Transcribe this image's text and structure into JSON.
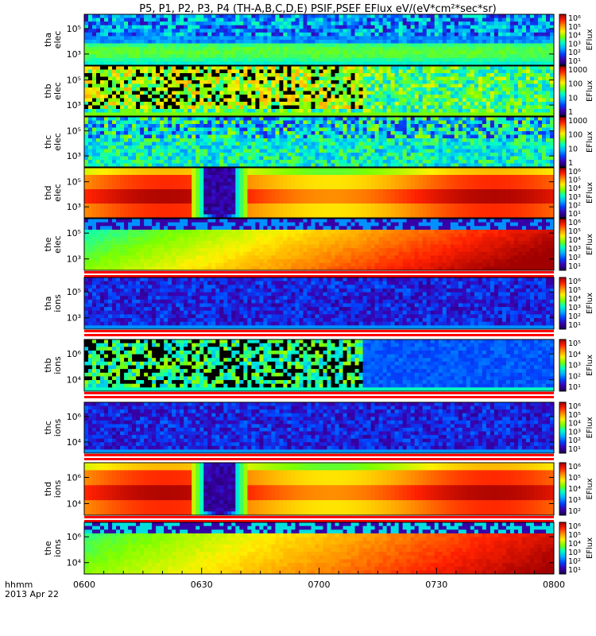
{
  "title": "P5, P1, P2, P3, P4 (TH-A,B,C,D,E) PSIF,PSEF EFlux eV/(eV*cm²*sec*sr)",
  "xaxis": {
    "ticks": [
      "0600",
      "0630",
      "0700",
      "0730",
      "0800"
    ],
    "label_line1": "hhmm",
    "label_line2": "2013 Apr 22"
  },
  "colors": {
    "band_red": "#ff0000",
    "frame": "#000000",
    "colormap": [
      "#1a0050",
      "#3a00b0",
      "#0044ff",
      "#00b0ff",
      "#00ffc8",
      "#7cff00",
      "#fff000",
      "#ff9000",
      "#ff2000",
      "#a00000"
    ]
  },
  "chart_data": [
    {
      "type": "heatmap",
      "name": "tha elec",
      "label1": "tha",
      "label2": "elec",
      "yticks": [
        "10⁵",
        "10³"
      ],
      "cbar_ticks": [
        "10⁶",
        "10⁵",
        "10⁴",
        "10³",
        "10²",
        "10¹"
      ],
      "cbar_label": "EFlux",
      "red_band": false
    },
    {
      "type": "heatmap",
      "name": "thb elec",
      "label1": "thb",
      "label2": "elec",
      "yticks": [
        "10⁵",
        "10³"
      ],
      "cbar_ticks": [
        "1000",
        "100",
        "10",
        "1"
      ],
      "cbar_label": "EFlux",
      "red_band": false
    },
    {
      "type": "heatmap",
      "name": "thc elec",
      "label1": "thc",
      "label2": "elec",
      "yticks": [
        "10⁵",
        "10³"
      ],
      "cbar_ticks": [
        "1000",
        "100",
        "10",
        "1"
      ],
      "cbar_label": "EFlux",
      "red_band": false
    },
    {
      "type": "heatmap",
      "name": "thd elec",
      "label1": "thd",
      "label2": "elec",
      "yticks": [
        "10⁵",
        "10³"
      ],
      "cbar_ticks": [
        "10⁶",
        "10⁵",
        "10⁴",
        "10³",
        "10²",
        "10¹"
      ],
      "cbar_label": "EFlux",
      "red_band": false
    },
    {
      "type": "heatmap",
      "name": "the elec",
      "label1": "the",
      "label2": "elec",
      "yticks": [
        "10⁵",
        "10³"
      ],
      "cbar_ticks": [
        "10⁶",
        "10⁵",
        "10⁴",
        "10³",
        "10²",
        "10¹"
      ],
      "cbar_label": "EFlux",
      "red_band": true
    },
    {
      "type": "heatmap",
      "name": "tha ions",
      "label1": "tha",
      "label2": "ions",
      "yticks": [
        "10⁵",
        "10³"
      ],
      "cbar_ticks": [
        "10⁶",
        "10⁵",
        "10⁴",
        "10³",
        "10²",
        "10¹"
      ],
      "cbar_label": "EFlux",
      "red_band": true
    },
    {
      "type": "heatmap",
      "name": "thb ions",
      "label1": "thb",
      "label2": "ions",
      "yticks": [
        "10⁶",
        "10⁴"
      ],
      "cbar_ticks": [
        "10⁵",
        "10⁴",
        "10³",
        "10²",
        "10¹"
      ],
      "cbar_label": "EFlux",
      "red_band": true
    },
    {
      "type": "heatmap",
      "name": "thc ions",
      "label1": "thc",
      "label2": "ions",
      "yticks": [
        "10⁶",
        "10⁴"
      ],
      "cbar_ticks": [
        "10⁶",
        "10⁵",
        "10⁴",
        "10³",
        "10²",
        "10¹"
      ],
      "cbar_label": "EFlux",
      "red_band": true
    },
    {
      "type": "heatmap",
      "name": "thd ions",
      "label1": "thd",
      "label2": "ions",
      "yticks": [
        "10⁶",
        "10⁴"
      ],
      "cbar_ticks": [
        "10⁶",
        "10⁵",
        "10⁴",
        "10³",
        "10²"
      ],
      "cbar_label": "EFlux",
      "red_band": true
    },
    {
      "type": "heatmap",
      "name": "the ions",
      "label1": "the",
      "label2": "ions",
      "yticks": [
        "10⁶",
        "10⁴"
      ],
      "cbar_ticks": [
        "10⁶",
        "10⁵",
        "10⁴",
        "10³",
        "10²",
        "10¹"
      ],
      "cbar_label": "EFlux",
      "red_band": false
    }
  ]
}
